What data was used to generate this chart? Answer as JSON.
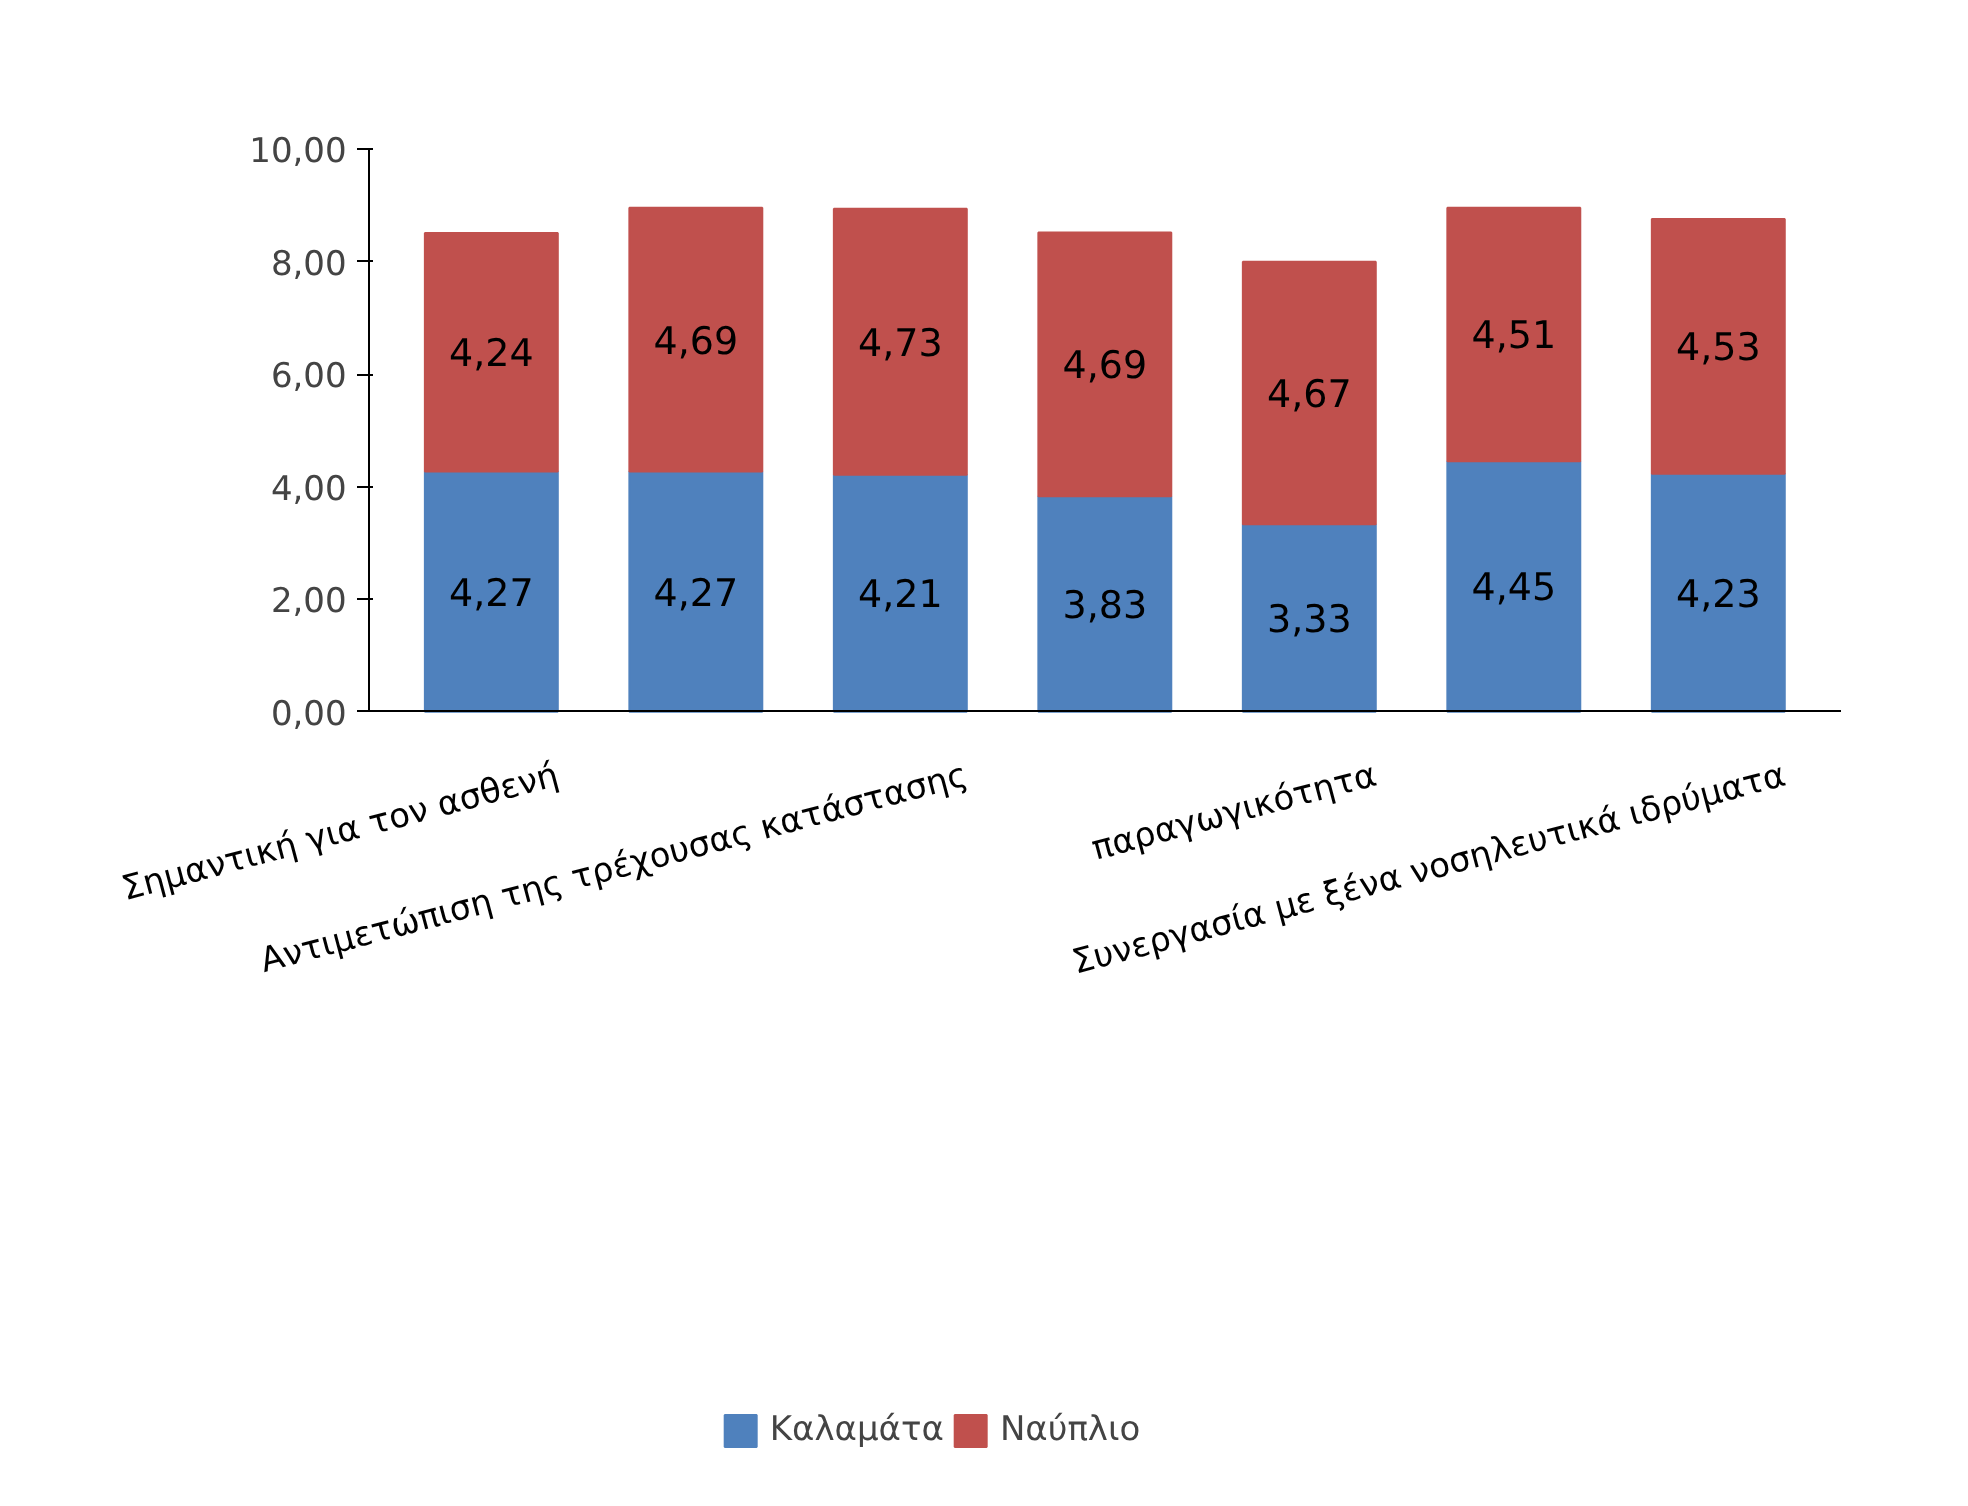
{
  "chart_data": {
    "type": "bar",
    "stacked": true,
    "categories": [
      "Σημαντική για τον ασθενή",
      null,
      "Αντιμετώπιση της τρέχουσας κατάστασης",
      null,
      "παραγωγικότητα",
      null,
      "Συνεργασία με ξένα νοσηλευτικά ιδρύματα"
    ],
    "series": [
      {
        "name": "Καλαμάτα",
        "color": "#4f81bd",
        "values": [
          4.27,
          4.27,
          4.21,
          3.83,
          3.33,
          4.45,
          4.23
        ],
        "value_labels": [
          "4,27",
          "4,27",
          "4,21",
          "3,83",
          "3,33",
          "4,45",
          "4,23"
        ]
      },
      {
        "name": "Ναύπλιο",
        "color": "#c0504d",
        "values": [
          4.24,
          4.69,
          4.73,
          4.69,
          4.67,
          4.51,
          4.53
        ],
        "value_labels": [
          "4,24",
          "4,69",
          "4,73",
          "4,69",
          "4,67",
          "4,51",
          "4,53"
        ]
      }
    ],
    "ylim": [
      0,
      10
    ],
    "yticks": [
      {
        "value": 0,
        "label": "0,00"
      },
      {
        "value": 2,
        "label": "2,00"
      },
      {
        "value": 4,
        "label": "4,00"
      },
      {
        "value": 6,
        "label": "6,00"
      },
      {
        "value": 8,
        "label": "8,00"
      },
      {
        "value": 10,
        "label": "10,00"
      }
    ],
    "grid": false,
    "legend": "bottom"
  }
}
